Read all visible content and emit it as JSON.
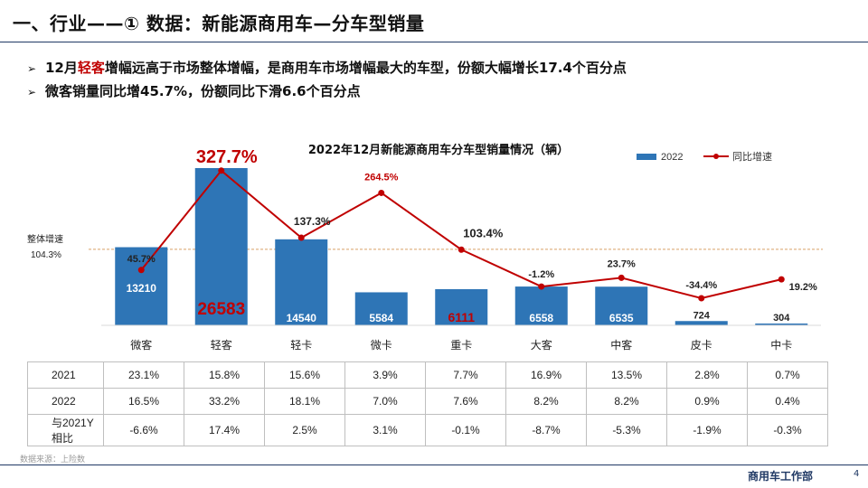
{
  "slide": {
    "title": "一、行业——① 数据：新能源商用车—分车型销量",
    "bullets": [
      {
        "arrow": "➢",
        "pre": "12月",
        "highlight": "轻客",
        "post": "增幅远高于市场整体增幅，是商用车市场增幅最大的车型，份额大幅增长17.4个百分点"
      },
      {
        "arrow": "➢",
        "pre": "微客销量同比增45.7%，份额同比下滑6.6个百分点",
        "highlight": "",
        "post": ""
      }
    ],
    "source": "数据来源：上险数",
    "department": "商用车工作部",
    "page": "4"
  },
  "chart_data": {
    "type": "bar",
    "title": "2022年12月新能源商用车分车型销量情况（辆）",
    "categories": [
      "微客",
      "轻客",
      "轻卡",
      "微卡",
      "重卡",
      "大客",
      "中客",
      "皮卡",
      "中卡"
    ],
    "series": [
      {
        "name": "2022",
        "type": "bar",
        "color": "#2e75b6",
        "values": [
          13210,
          26583,
          14540,
          5584,
          6111,
          6558,
          6535,
          724,
          304
        ]
      },
      {
        "name": "同比增速",
        "type": "line",
        "color": "#c00000",
        "values": [
          45.7,
          327.7,
          137.3,
          264.5,
          103.4,
          -1.2,
          23.7,
          -34.4,
          19.2
        ]
      }
    ],
    "bar_labels": [
      "13210",
      "26583",
      "14540",
      "5584",
      "6111",
      "6558",
      "6535",
      "724",
      "304"
    ],
    "line_labels": [
      "45.7%",
      "327.7%",
      "137.3%",
      "264.5%",
      "103.4%",
      "-1.2%",
      "23.7%",
      "-34.4%",
      "19.2%"
    ],
    "reference": {
      "label": "整体增速",
      "value_label": "104.3%",
      "value": 104.3,
      "color": "#d9a066"
    },
    "bar_ylim": [
      0,
      27500
    ],
    "line_ylim": [
      -60,
      340
    ],
    "legend_position": "top-right",
    "grid": false
  },
  "table": {
    "rows": [
      {
        "label": "2021",
        "values": [
          "23.1%",
          "15.8%",
          "15.6%",
          "3.9%",
          "7.7%",
          "16.9%",
          "13.5%",
          "2.8%",
          "0.7%"
        ]
      },
      {
        "label": "2022",
        "values": [
          "16.5%",
          "33.2%",
          "18.1%",
          "7.0%",
          "7.6%",
          "8.2%",
          "8.2%",
          "0.9%",
          "0.4%"
        ]
      },
      {
        "label": "与2021Y相比",
        "values": [
          "-6.6%",
          "17.4%",
          "2.5%",
          "3.1%",
          "-0.1%",
          "-8.7%",
          "-5.3%",
          "-1.9%",
          "-0.3%"
        ]
      }
    ]
  }
}
